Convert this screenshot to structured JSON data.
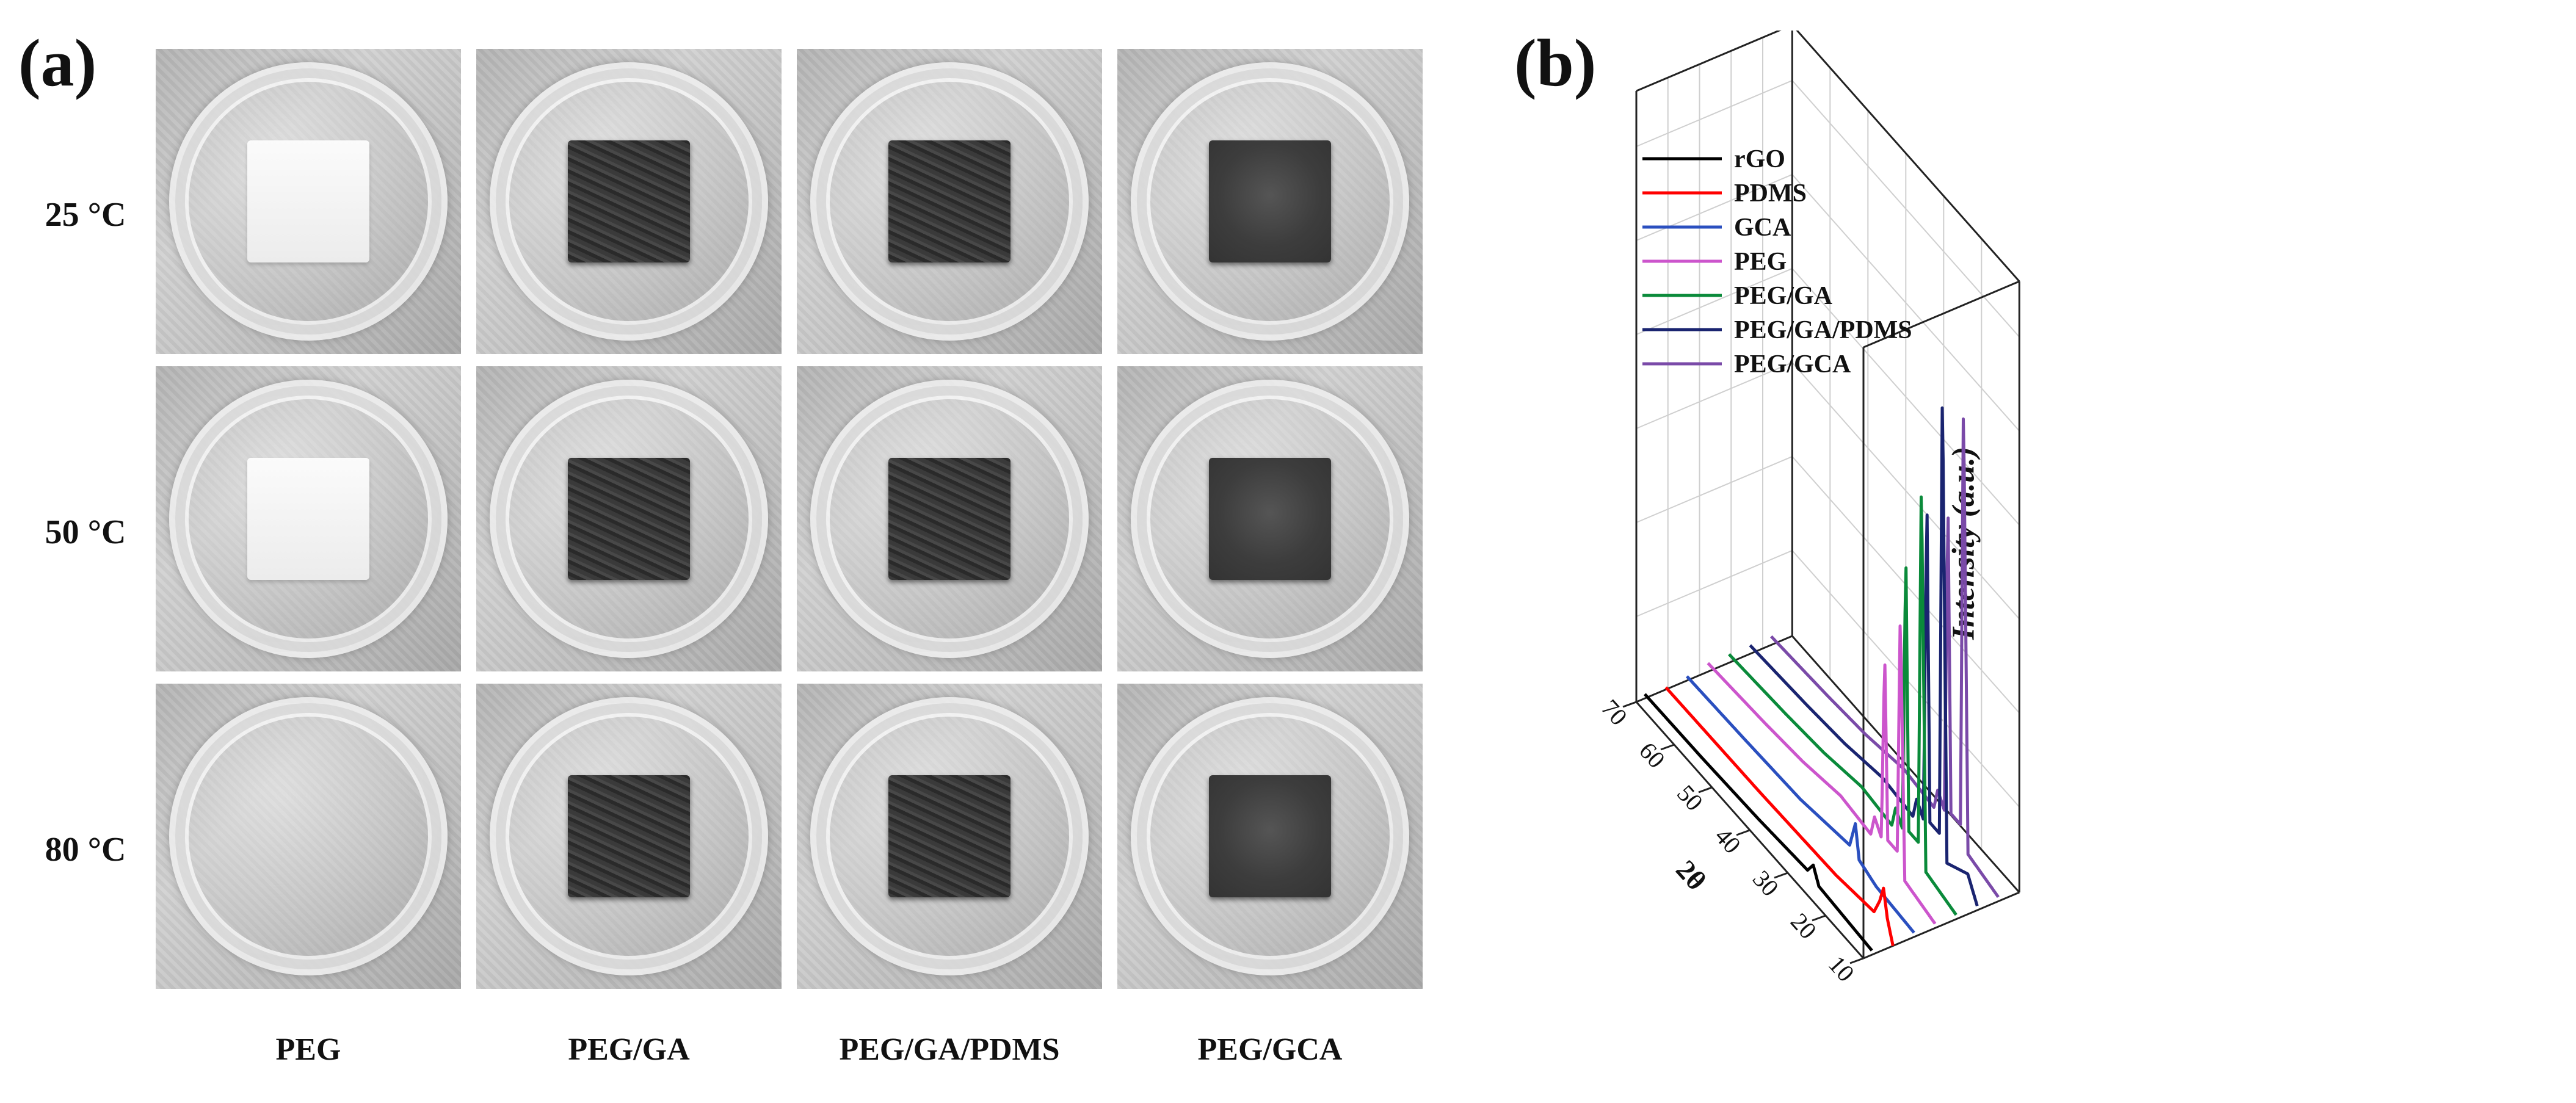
{
  "figure": {
    "panel_a_label": "(a)",
    "panel_b_label": "(b)"
  },
  "photo_grid": {
    "rows": [
      {
        "label": "25 °C",
        "states": [
          "solid",
          "solid",
          "solid",
          "solid"
        ]
      },
      {
        "label": "50 °C",
        "states": [
          "solid",
          "solid",
          "solid",
          "solid"
        ]
      },
      {
        "label": "80 °C",
        "states": [
          "melted",
          "solid",
          "solid",
          "solid"
        ]
      }
    ],
    "columns": [
      "PEG",
      "PEG/GA",
      "PEG/GA/PDMS",
      "PEG/GCA"
    ],
    "sample_appearance": [
      "white",
      "dark",
      "dark",
      "smooth"
    ]
  },
  "chart_data": {
    "type": "line",
    "title": "",
    "xlabel": "2θ",
    "ylabel": "",
    "zlabel": "Intensity (a.u.)",
    "xlim": [
      10,
      70
    ],
    "x_ticks": [
      10,
      20,
      30,
      40,
      50,
      60,
      70
    ],
    "legend_position": "top-left",
    "grid": true,
    "series": [
      {
        "name": "rGO",
        "color": "#000000",
        "points": [
          [
            10,
            0.1
          ],
          [
            24,
            0.2
          ],
          [
            25.5,
            0.55
          ],
          [
            27,
            0.28
          ],
          [
            40,
            0.18
          ],
          [
            55,
            0.12
          ],
          [
            70,
            0.1
          ]
        ]
      },
      {
        "name": "PDMS",
        "color": "#ff0000",
        "points": [
          [
            10,
            0.0
          ],
          [
            11.5,
            0.5
          ],
          [
            12.5,
            1.1
          ],
          [
            13.5,
            0.7
          ],
          [
            15,
            0.3
          ],
          [
            25,
            0.15
          ],
          [
            45,
            0.08
          ],
          [
            70,
            0.05
          ]
        ]
      },
      {
        "name": "GCA",
        "color": "#2a4fbf",
        "points": [
          [
            10,
            0.1
          ],
          [
            20,
            0.18
          ],
          [
            24.5,
            0.35
          ],
          [
            25.5,
            1.1
          ],
          [
            27,
            0.45
          ],
          [
            40,
            0.22
          ],
          [
            55,
            0.15
          ],
          [
            70,
            0.1
          ]
        ]
      },
      {
        "name": "PEG",
        "color": "#cc55cc",
        "points": [
          [
            10,
            0.1
          ],
          [
            18,
            0.3
          ],
          [
            19.2,
            6.5
          ],
          [
            20,
            0.8
          ],
          [
            22.5,
            0.8
          ],
          [
            23.3,
            5.1
          ],
          [
            24.2,
            0.7
          ],
          [
            26,
            1.0
          ],
          [
            27,
            0.5
          ],
          [
            35,
            0.6
          ],
          [
            45,
            0.4
          ],
          [
            55,
            0.3
          ],
          [
            70,
            0.2
          ]
        ]
      },
      {
        "name": "PEG/GA",
        "color": "#0a8a3a",
        "points": [
          [
            10,
            0.1
          ],
          [
            18,
            0.3
          ],
          [
            19.2,
            9.5
          ],
          [
            20,
            0.8
          ],
          [
            22.5,
            0.8
          ],
          [
            23.3,
            7.3
          ],
          [
            24.2,
            0.7
          ],
          [
            26,
            1.0
          ],
          [
            27,
            0.5
          ],
          [
            35,
            0.6
          ],
          [
            45,
            0.4
          ],
          [
            55,
            0.3
          ],
          [
            70,
            0.2
          ]
        ]
      },
      {
        "name": "PEG/GA/PDMS",
        "color": "#1a2470",
        "points": [
          [
            10,
            0.1
          ],
          [
            12.5,
            0.6
          ],
          [
            18,
            0.3
          ],
          [
            19.2,
            11.5
          ],
          [
            20,
            0.8
          ],
          [
            22.5,
            0.8
          ],
          [
            23.3,
            8.4
          ],
          [
            24.2,
            0.7
          ],
          [
            26,
            1.0
          ],
          [
            27,
            0.5
          ],
          [
            35,
            0.6
          ],
          [
            45,
            0.4
          ],
          [
            55,
            0.3
          ],
          [
            70,
            0.2
          ]
        ]
      },
      {
        "name": "PEG/GCA",
        "color": "#7a4aa8",
        "points": [
          [
            10,
            0.1
          ],
          [
            18,
            0.3
          ],
          [
            19.2,
            11.0
          ],
          [
            20,
            0.8
          ],
          [
            22.5,
            0.8
          ],
          [
            23.3,
            8.1
          ],
          [
            24.2,
            0.7
          ],
          [
            26,
            1.0
          ],
          [
            27,
            0.5
          ],
          [
            35,
            0.6
          ],
          [
            45,
            0.4
          ],
          [
            55,
            0.3
          ],
          [
            70,
            0.2
          ]
        ]
      }
    ]
  }
}
